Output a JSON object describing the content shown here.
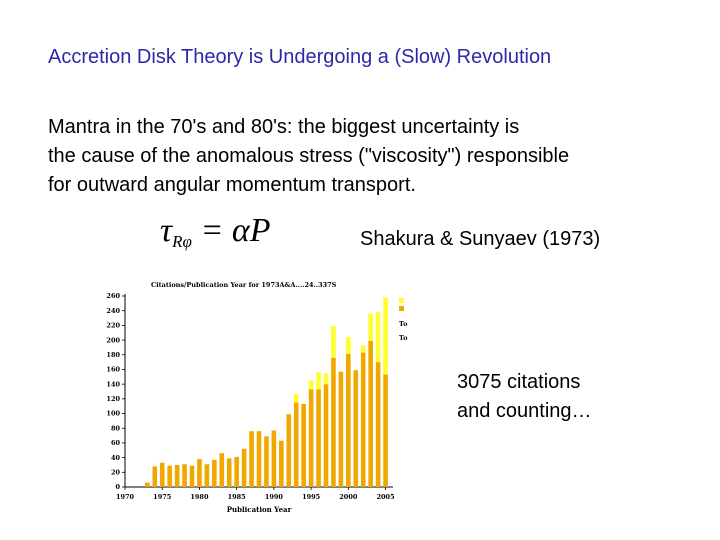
{
  "slide": {
    "title": "Accretion Disk Theory is Undergoing a (Slow) Revolution",
    "body_lines": [
      "Mantra in the 70's and 80's:  the biggest uncertainty is",
      "the cause of the anomalous stress (\"viscosity\") responsible",
      "for outward angular momentum transport."
    ],
    "equation": {
      "symbol": "τ",
      "subscript": "Rφ",
      "rhs": " = αP"
    },
    "reference": "Shakura & Sunyaev (1973)",
    "note_lines": [
      "3075 citations",
      "and counting…"
    ]
  },
  "colors": {
    "title": "#2a2aa8",
    "bar_lower": "#f0a800",
    "bar_upper": "#ffff30"
  },
  "chart_data": {
    "type": "bar",
    "stacked": true,
    "title": "Citations/Publication Year for 1973A&A....24..337S",
    "xlabel": "Publication Year",
    "ylabel": "",
    "xlim": [
      1970,
      2006
    ],
    "ylim": [
      0,
      260
    ],
    "x_ticks": [
      1970,
      1975,
      1980,
      1985,
      1990,
      1995,
      2000,
      2005
    ],
    "y_ticks": [
      0,
      20,
      40,
      60,
      80,
      100,
      120,
      140,
      160,
      180,
      200,
      220,
      240,
      260
    ],
    "legend_labels": [
      "To",
      "To"
    ],
    "legend_position": "top-right (partially cut off)",
    "x": [
      1973,
      1974,
      1975,
      1976,
      1977,
      1978,
      1979,
      1980,
      1981,
      1982,
      1983,
      1984,
      1985,
      1986,
      1987,
      1988,
      1989,
      1990,
      1991,
      1992,
      1993,
      1994,
      1995,
      1996,
      1997,
      1998,
      1999,
      2000,
      2001,
      2002,
      2003,
      2004,
      2005
    ],
    "series": [
      {
        "color": "#f0a800",
        "values": [
          6,
          28,
          33,
          29,
          30,
          31,
          29,
          38,
          31,
          37,
          46,
          39,
          41,
          52,
          76,
          76,
          69,
          77,
          63,
          99,
          115,
          113,
          133,
          133,
          140,
          176,
          157,
          181,
          159,
          183,
          199,
          170,
          153
        ]
      },
      {
        "color": "#ffff30",
        "values": [
          0,
          0,
          0,
          0,
          0,
          0,
          0,
          0,
          0,
          0,
          0,
          0,
          0,
          0,
          0,
          0,
          0,
          0,
          0,
          0,
          12,
          0,
          12,
          23,
          15,
          43,
          0,
          23,
          0,
          10,
          37,
          68,
          105
        ]
      }
    ]
  }
}
